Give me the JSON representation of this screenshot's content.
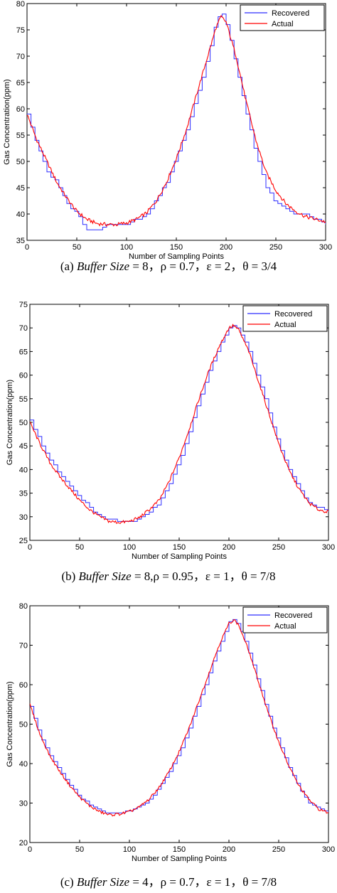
{
  "chart_data": [
    {
      "type": "line",
      "caption": {
        "prefix": "(a) ",
        "var": "Buffer Size",
        "rest": " = 8，ρ = 0.7，ε = 2，θ = 3/4"
      },
      "xlabel": "Number of Sampling Points",
      "ylabel": "Gas Concentration(ppm)",
      "xlim": [
        0,
        300
      ],
      "ylim": [
        35,
        80
      ],
      "xticks": [
        0,
        50,
        100,
        150,
        200,
        250,
        300
      ],
      "yticks": [
        35,
        40,
        45,
        50,
        55,
        60,
        65,
        70,
        75,
        80
      ],
      "grid": false,
      "legend": "top-right",
      "series": [
        {
          "name": "Recovered",
          "color": "#2f2fff",
          "step": true,
          "x": [
            0,
            10,
            20,
            30,
            40,
            50,
            60,
            70,
            80,
            90,
            100,
            110,
            120,
            130,
            140,
            150,
            160,
            170,
            180,
            190,
            195,
            200,
            210,
            220,
            230,
            240,
            250,
            260,
            270,
            280,
            290,
            300
          ],
          "y": [
            59,
            53,
            48,
            46,
            42,
            40,
            37,
            37,
            38,
            38,
            38,
            39,
            40,
            43,
            46,
            51,
            56,
            62,
            69,
            77,
            78.5,
            76,
            68,
            59,
            51,
            45,
            42,
            41,
            40,
            40,
            39,
            38
          ]
        },
        {
          "name": "Actual",
          "color": "#ff0000",
          "step": false,
          "x": [
            0,
            10,
            20,
            30,
            40,
            50,
            60,
            70,
            80,
            90,
            100,
            110,
            120,
            130,
            140,
            150,
            160,
            170,
            180,
            190,
            195,
            200,
            210,
            220,
            230,
            240,
            250,
            260,
            270,
            280,
            290,
            300
          ],
          "y": [
            59,
            54,
            50,
            46,
            43,
            40.5,
            39,
            38.2,
            38,
            38,
            38.3,
            39,
            40.2,
            42.5,
            46,
            50.5,
            56,
            62.5,
            69,
            75.5,
            77.5,
            76.5,
            70,
            61.5,
            54,
            48,
            44.5,
            42,
            40.5,
            39.5,
            39,
            38.5
          ]
        }
      ]
    },
    {
      "type": "line",
      "caption": {
        "prefix": "(b) ",
        "var": "Buffer Size",
        "rest": " = 8,ρ = 0.95，ε = 1，θ = 7/8"
      },
      "xlabel": "Number of Sampling Points",
      "ylabel": "Gas Concentration(ppm)",
      "xlim": [
        0,
        300
      ],
      "ylim": [
        25,
        75
      ],
      "xticks": [
        0,
        50,
        100,
        150,
        200,
        250,
        300
      ],
      "yticks": [
        25,
        30,
        35,
        40,
        45,
        50,
        55,
        60,
        65,
        70,
        75
      ],
      "grid": false,
      "legend": "top-right",
      "series": [
        {
          "name": "Recovered",
          "color": "#2f2fff",
          "step": true,
          "x": [
            0,
            10,
            20,
            30,
            40,
            50,
            60,
            70,
            80,
            90,
            100,
            110,
            120,
            130,
            140,
            150,
            160,
            170,
            180,
            190,
            200,
            205,
            210,
            220,
            230,
            240,
            250,
            260,
            270,
            280,
            290,
            300
          ],
          "y": [
            50.5,
            46,
            42,
            39,
            36.5,
            34,
            32,
            30,
            29.5,
            29,
            29,
            29.5,
            31,
            33,
            37,
            42,
            48,
            55,
            61,
            66,
            70,
            70.5,
            69.5,
            65,
            59,
            52,
            45,
            40,
            36,
            33,
            32,
            31
          ]
        },
        {
          "name": "Actual",
          "color": "#ff0000",
          "step": false,
          "x": [
            0,
            10,
            20,
            30,
            40,
            50,
            60,
            70,
            80,
            90,
            100,
            110,
            120,
            130,
            140,
            150,
            160,
            170,
            180,
            190,
            200,
            205,
            210,
            220,
            230,
            240,
            250,
            260,
            270,
            280,
            290,
            300
          ],
          "y": [
            50,
            45.5,
            41.5,
            38.5,
            36,
            33.5,
            31.5,
            30,
            29,
            28.8,
            29,
            29.8,
            31.5,
            33.5,
            37.5,
            42.5,
            48.5,
            55,
            61,
            66,
            70,
            70.5,
            69.5,
            65,
            58.5,
            52,
            45.5,
            40,
            36,
            33,
            31.5,
            31
          ]
        }
      ]
    },
    {
      "type": "line",
      "caption": {
        "prefix": "(c) ",
        "var": "Buffer Size",
        "rest": " = 4，ρ = 0.7，ε = 1，θ = 7/8"
      },
      "xlabel": "Number of Sampling Points",
      "ylabel": "Gas Concentration(ppm)",
      "xlim": [
        0,
        300
      ],
      "ylim": [
        20,
        80
      ],
      "xticks": [
        0,
        50,
        100,
        150,
        200,
        250,
        300
      ],
      "yticks": [
        20,
        30,
        40,
        50,
        60,
        70,
        80
      ],
      "grid": false,
      "legend": "top-right",
      "series": [
        {
          "name": "Recovered",
          "color": "#2f2fff",
          "step": true,
          "x": [
            0,
            10,
            20,
            30,
            40,
            50,
            60,
            70,
            80,
            90,
            100,
            110,
            120,
            130,
            140,
            150,
            160,
            170,
            180,
            190,
            200,
            205,
            210,
            220,
            230,
            240,
            250,
            260,
            270,
            280,
            290,
            300
          ],
          "y": [
            54.5,
            47,
            42,
            38,
            34.5,
            31.5,
            29.5,
            28,
            27.5,
            27.5,
            28,
            29,
            31,
            34,
            38,
            43,
            49,
            56,
            63,
            70,
            76,
            76.5,
            75,
            68,
            60,
            52,
            45,
            39,
            34,
            30,
            28.5,
            27.5
          ]
        },
        {
          "name": "Actual",
          "color": "#ff0000",
          "step": false,
          "x": [
            0,
            10,
            20,
            30,
            40,
            50,
            60,
            70,
            80,
            90,
            100,
            110,
            120,
            130,
            140,
            150,
            160,
            170,
            180,
            190,
            200,
            205,
            210,
            220,
            230,
            240,
            250,
            260,
            270,
            280,
            290,
            300
          ],
          "y": [
            55,
            47.5,
            42,
            38,
            34.5,
            31.5,
            29.3,
            27.8,
            27,
            27.2,
            27.8,
            29,
            31,
            34,
            38,
            43,
            49,
            56,
            63,
            70,
            75.5,
            76.5,
            75,
            68.5,
            60.5,
            52.5,
            45.5,
            39.5,
            34.5,
            31,
            28.5,
            27.5
          ]
        }
      ]
    }
  ]
}
